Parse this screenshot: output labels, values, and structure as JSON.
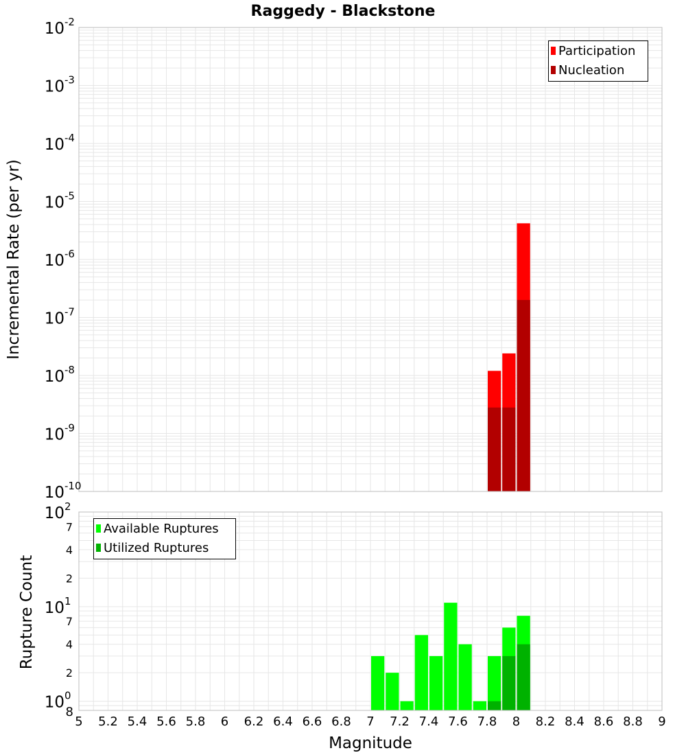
{
  "title": "Raggedy - Blackstone",
  "x_axis": {
    "label": "Magnitude",
    "range": [
      5,
      9
    ],
    "ticks": [
      "5",
      "5.2",
      "5.4",
      "5.6",
      "5.8",
      "6",
      "6.2",
      "6.4",
      "6.6",
      "6.8",
      "7",
      "7.2",
      "7.4",
      "7.6",
      "7.8",
      "8",
      "8.2",
      "8.4",
      "8.6",
      "8.8",
      "9"
    ]
  },
  "top_panel": {
    "ylabel": "Incremental Rate (per yr)",
    "y_tick_bases": [
      "10",
      "10",
      "10",
      "10",
      "10",
      "10",
      "10",
      "10",
      "10"
    ],
    "y_tick_exponents": [
      "-10",
      "-9",
      "-8",
      "-7",
      "-6",
      "-5",
      "-4",
      "-3",
      "-2"
    ],
    "legend": [
      "Participation",
      "Nucleation"
    ]
  },
  "bottom_panel": {
    "ylabel": "Rupture Count",
    "y_major_bases": [
      "10",
      "10",
      "10"
    ],
    "y_major_exponents": [
      "0",
      "1",
      "2"
    ],
    "y_minor_labels": [
      "2",
      "4",
      "7",
      "2",
      "4",
      "7"
    ],
    "y_bottom_label": "8",
    "legend": [
      "Available Ruptures",
      "Utilized Ruptures"
    ]
  },
  "colors": {
    "participation": "#ff0000",
    "nucleation": "#b20000",
    "available": "#00ff00",
    "utilized": "#00b200",
    "grid": "#e6e6e6",
    "frame": "#bdbdbd"
  },
  "chart_data": [
    {
      "type": "bar",
      "title": "Raggedy - Blackstone",
      "xlabel": "Magnitude",
      "ylabel": "Incremental Rate (per yr)",
      "xlim": [
        5,
        9
      ],
      "ylim": [
        1e-10,
        0.01
      ],
      "y_scale": "log",
      "grid": true,
      "legend_position": "top-right",
      "bar_width": 0.1,
      "x": [
        7.85,
        7.95,
        8.05
      ],
      "series": [
        {
          "name": "Participation",
          "values": [
            1.2e-08,
            2.4e-08,
            4.2e-06
          ]
        },
        {
          "name": "Nucleation",
          "values": [
            2.8e-09,
            2.8e-09,
            2e-07
          ]
        }
      ]
    },
    {
      "type": "bar",
      "xlabel": "Magnitude",
      "ylabel": "Rupture Count",
      "xlim": [
        5,
        9
      ],
      "ylim": [
        0.8,
        100
      ],
      "y_scale": "log",
      "grid": true,
      "legend_position": "top-left",
      "bar_width": 0.1,
      "x": [
        7.05,
        7.15,
        7.25,
        7.35,
        7.45,
        7.55,
        7.65,
        7.75,
        7.85,
        7.95,
        8.05
      ],
      "series": [
        {
          "name": "Available Ruptures",
          "values": [
            3,
            2,
            1,
            5,
            3,
            11,
            4,
            1,
            3,
            6,
            8
          ]
        },
        {
          "name": "Utilized Ruptures",
          "values": [
            0,
            0,
            0,
            0,
            0,
            0,
            0,
            0,
            1,
            3,
            4
          ]
        }
      ]
    }
  ]
}
